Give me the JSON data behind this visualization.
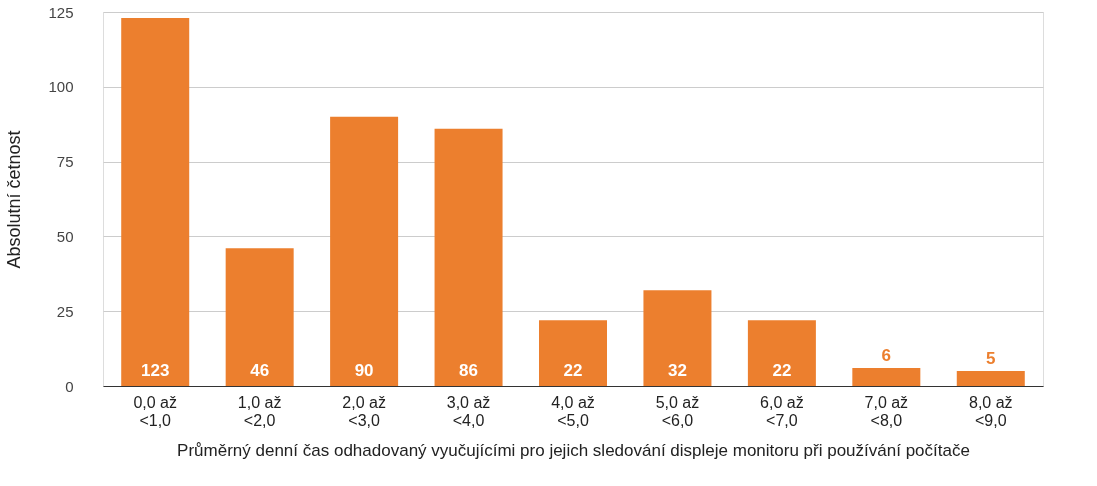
{
  "chart_data": {
    "type": "bar",
    "xlabel": "Průměrný denní čas odhadovaný vyučujícími pro jejich sledování displeje monitoru při používání počítače",
    "ylabel": "Absolutní četnost",
    "categories": [
      "0,0 až\n<1,0",
      "1,0 až\n<2,0",
      "2,0 až\n<3,0",
      "3,0 až\n<4,0",
      "4,0 až\n<5,0",
      "5,0 až\n<6,0",
      "6,0 až\n<7,0",
      "7,0 až\n<8,0",
      "8,0 až\n<9,0"
    ],
    "values": [
      123,
      46,
      90,
      86,
      22,
      32,
      22,
      6,
      5
    ],
    "color": "#ec7f2e",
    "ylim": [
      0,
      125
    ],
    "yticks": [
      0,
      25,
      50,
      75,
      100,
      125
    ],
    "grid": "y",
    "data_labels": true
  }
}
